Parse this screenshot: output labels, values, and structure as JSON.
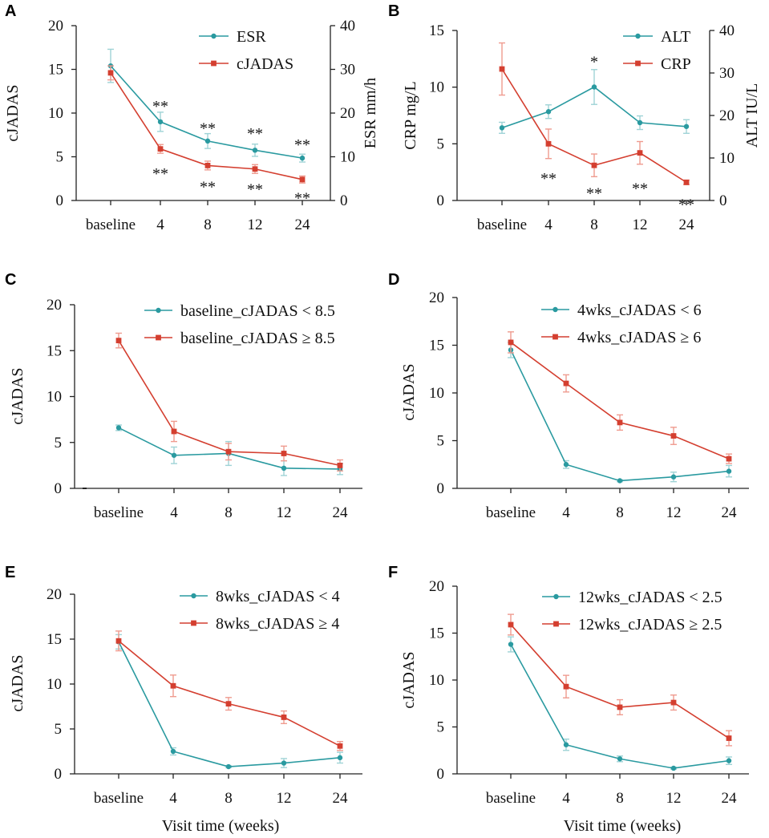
{
  "colors": {
    "teal": "#2a9aa0",
    "red": "#d43f30",
    "err_teal": "#9fd3d6",
    "err_red": "#ef9b8f"
  },
  "chart_data": [
    {
      "panel": "A",
      "type": "line",
      "categories": [
        "baseline",
        "4",
        "8",
        "12",
        "24"
      ],
      "ylabel": "cJADAS",
      "ylabel_right": "ESR mm/h",
      "ylim": [
        0,
        20
      ],
      "yticks": [
        "0",
        "5",
        "10",
        "15",
        "20"
      ],
      "ylim_right": [
        0,
        40
      ],
      "yticks_right": [
        "0",
        "10",
        "20",
        "30",
        "40"
      ],
      "series": [
        {
          "name": "ESR",
          "axis": "right",
          "color": "teal",
          "values": [
            30.8,
            18.0,
            13.6,
            11.5,
            9.7
          ],
          "errors": [
            3.8,
            2.2,
            1.7,
            1.4,
            0.9
          ]
        },
        {
          "name": "cJADAS",
          "axis": "left",
          "color": "red",
          "values": [
            14.6,
            5.9,
            4.0,
            3.6,
            2.4
          ],
          "errors": [
            0.8,
            0.5,
            0.5,
            0.5,
            0.4
          ]
        }
      ],
      "annotations": [
        {
          "text": "**",
          "cat": 1,
          "value": 11.1
        },
        {
          "text": "**",
          "cat": 1,
          "value": 3.4
        },
        {
          "text": "**",
          "cat": 2,
          "value": 8.6
        },
        {
          "text": "**",
          "cat": 2,
          "value": 1.9
        },
        {
          "text": "**",
          "cat": 3,
          "value": 8.0
        },
        {
          "text": "**",
          "cat": 3,
          "value": 1.6
        },
        {
          "text": "**",
          "cat": 4,
          "value": 6.7
        },
        {
          "text": "**",
          "cat": 4,
          "value": 0.6
        }
      ]
    },
    {
      "panel": "B",
      "type": "line",
      "categories": [
        "baseline",
        "4",
        "8",
        "12",
        "24"
      ],
      "ylabel": "CRP mg/L",
      "ylabel_right": "ALT IU/L",
      "ylim": [
        0,
        15
      ],
      "yticks": [
        "0",
        "5",
        "10",
        "15"
      ],
      "ylim_right": [
        0,
        40
      ],
      "yticks_right": [
        "0",
        "10",
        "20",
        "30",
        "40"
      ],
      "series": [
        {
          "name": "ALT",
          "axis": "right",
          "color": "teal",
          "values": [
            17.1,
            20.9,
            26.7,
            18.3,
            17.4
          ],
          "errors": [
            1.3,
            1.6,
            4.1,
            1.6,
            1.6
          ]
        },
        {
          "name": "CRP",
          "axis": "left",
          "color": "red",
          "values": [
            11.6,
            5.0,
            3.1,
            4.2,
            1.6
          ],
          "errors": [
            2.3,
            1.3,
            1.0,
            1.0,
            0.2
          ]
        }
      ],
      "annotations": [
        {
          "text": "*",
          "cat": 2,
          "value": 12.5
        },
        {
          "text": "**",
          "cat": 1,
          "value": 2.2
        },
        {
          "text": "**",
          "cat": 2,
          "value": 0.9
        },
        {
          "text": "**",
          "cat": 3,
          "value": 1.3
        },
        {
          "text": "**",
          "cat": 4,
          "value": -0.1
        }
      ]
    },
    {
      "panel": "C",
      "type": "line",
      "categories": [
        "baseline",
        "4",
        "8",
        "12",
        "24"
      ],
      "ylabel": "cJADAS",
      "ylim": [
        0,
        20
      ],
      "yticks": [
        "0",
        "5",
        "10",
        "15",
        "20"
      ],
      "series": [
        {
          "name": "baseline_cJADAS < 8.5",
          "color": "teal",
          "values": [
            6.6,
            3.6,
            3.8,
            2.2,
            2.1
          ],
          "errors": [
            0.3,
            0.9,
            1.3,
            0.8,
            0.6
          ]
        },
        {
          "name": "baseline_cJADAS ≥ 8.5",
          "color": "red",
          "values": [
            16.1,
            6.2,
            4.0,
            3.8,
            2.5
          ],
          "errors": [
            0.8,
            1.1,
            0.9,
            0.8,
            0.6
          ]
        }
      ]
    },
    {
      "panel": "D",
      "type": "line",
      "categories": [
        "baseline",
        "4",
        "8",
        "12",
        "24"
      ],
      "ylabel": "cJADAS",
      "ylim": [
        0,
        20
      ],
      "yticks": [
        "0",
        "5",
        "10",
        "15",
        "20"
      ],
      "series": [
        {
          "name": "4wks_cJADAS < 6",
          "color": "teal",
          "values": [
            14.5,
            2.5,
            0.8,
            1.2,
            1.8
          ],
          "errors": [
            0.8,
            0.4,
            0.1,
            0.5,
            0.6
          ]
        },
        {
          "name": "4wks_cJADAS ≥ 6",
          "color": "red",
          "values": [
            15.3,
            11.0,
            6.9,
            5.5,
            3.1
          ],
          "errors": [
            1.1,
            0.9,
            0.8,
            0.9,
            0.5
          ]
        }
      ]
    },
    {
      "panel": "E",
      "type": "line",
      "categories": [
        "baseline",
        "4",
        "8",
        "12",
        "24"
      ],
      "ylabel": "cJADAS",
      "xlabel": "Visit time (weeks)",
      "ylim": [
        0,
        20
      ],
      "yticks": [
        "0",
        "5",
        "10",
        "15",
        "20"
      ],
      "series": [
        {
          "name": "8wks_cJADAS < 4",
          "color": "teal",
          "values": [
            14.7,
            2.5,
            0.8,
            1.2,
            1.8
          ],
          "errors": [
            0.8,
            0.4,
            0.1,
            0.5,
            0.6
          ]
        },
        {
          "name": "8wks_cJADAS ≥ 4",
          "color": "red",
          "values": [
            14.8,
            9.8,
            7.8,
            6.3,
            3.1
          ],
          "errors": [
            1.1,
            1.2,
            0.7,
            0.7,
            0.5
          ]
        }
      ]
    },
    {
      "panel": "F",
      "type": "line",
      "categories": [
        "baseline",
        "4",
        "8",
        "12",
        "24"
      ],
      "ylabel": "cJADAS",
      "xlabel": "Visit time (weeks)",
      "ylim": [
        0,
        20
      ],
      "yticks": [
        "0",
        "5",
        "10",
        "15",
        "20"
      ],
      "series": [
        {
          "name": "12wks_cJADAS < 2.5",
          "color": "teal",
          "values": [
            13.8,
            3.1,
            1.6,
            0.6,
            1.4
          ],
          "errors": [
            0.8,
            0.6,
            0.3,
            0.1,
            0.4
          ]
        },
        {
          "name": "12wks_cJADAS ≥ 2.5",
          "color": "red",
          "values": [
            15.9,
            9.3,
            7.1,
            7.6,
            3.8
          ],
          "errors": [
            1.1,
            1.2,
            0.8,
            0.8,
            0.8
          ]
        }
      ]
    }
  ]
}
